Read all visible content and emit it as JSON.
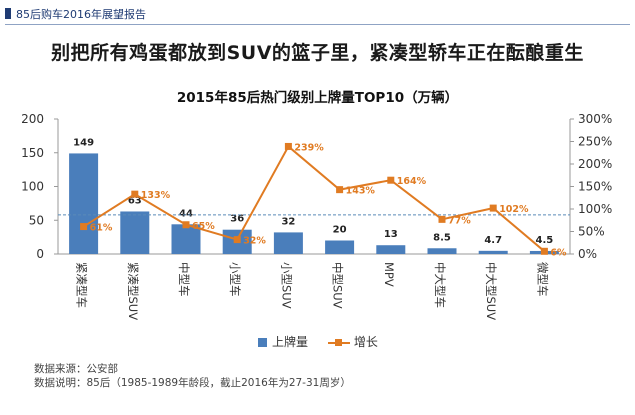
{
  "header": {
    "report_title": "85后购车2016年展望报告"
  },
  "headline": "别把所有鸡蛋都放到SUV的篮子里，紧凑型轿车正在酝酿重生",
  "chart_data": {
    "type": "bar+line",
    "title": "2015年85后热门级别上牌量TOP10（万辆）",
    "categories": [
      "紧凑型车",
      "紧凑型SUV",
      "中型车",
      "小型车",
      "小型SUV",
      "中型SUV",
      "MPV",
      "中大型车",
      "中大型SUV",
      "微型车"
    ],
    "series": [
      {
        "name": "上牌量",
        "type": "bar",
        "axis": "left",
        "values": [
          149,
          63,
          44,
          36,
          32,
          20,
          13,
          8.5,
          4.7,
          4.5
        ],
        "labels": [
          "149",
          "63",
          "44",
          "36",
          "32",
          "20",
          "13",
          "8.5",
          "4.7",
          "4.5"
        ]
      },
      {
        "name": "增长",
        "type": "line",
        "axis": "right",
        "values": [
          61,
          133,
          65,
          32,
          239,
          143,
          164,
          77,
          102,
          6
        ],
        "labels": [
          "61%",
          "133%",
          "65%",
          "32%",
          "239%",
          "143%",
          "164%",
          "77%",
          "102%",
          "6%"
        ]
      }
    ],
    "left_axis": {
      "ylim": [
        0,
        200
      ],
      "ticks": [
        "0",
        "50",
        "100",
        "150",
        "200"
      ],
      "tick_values": [
        0,
        50,
        100,
        150,
        200
      ]
    },
    "right_axis": {
      "ylim": [
        0,
        300
      ],
      "ticks": [
        "0%",
        "50%",
        "100%",
        "150%",
        "200%",
        "250%",
        "300%"
      ],
      "tick_values": [
        0,
        50,
        100,
        150,
        200,
        250,
        300
      ]
    },
    "reference_line": {
      "axis": "right",
      "value": 87
    },
    "colors": {
      "bar": "#4a7ebb",
      "line": "#e07b22",
      "reference": "#5a8ab8"
    }
  },
  "legend": {
    "bar_label": "上牌量",
    "line_label": "增长"
  },
  "notes": {
    "source": "数据来源：公安部",
    "explanation": "数据说明：85后（1985-1989年龄段，截止2016年为27-31周岁）"
  }
}
